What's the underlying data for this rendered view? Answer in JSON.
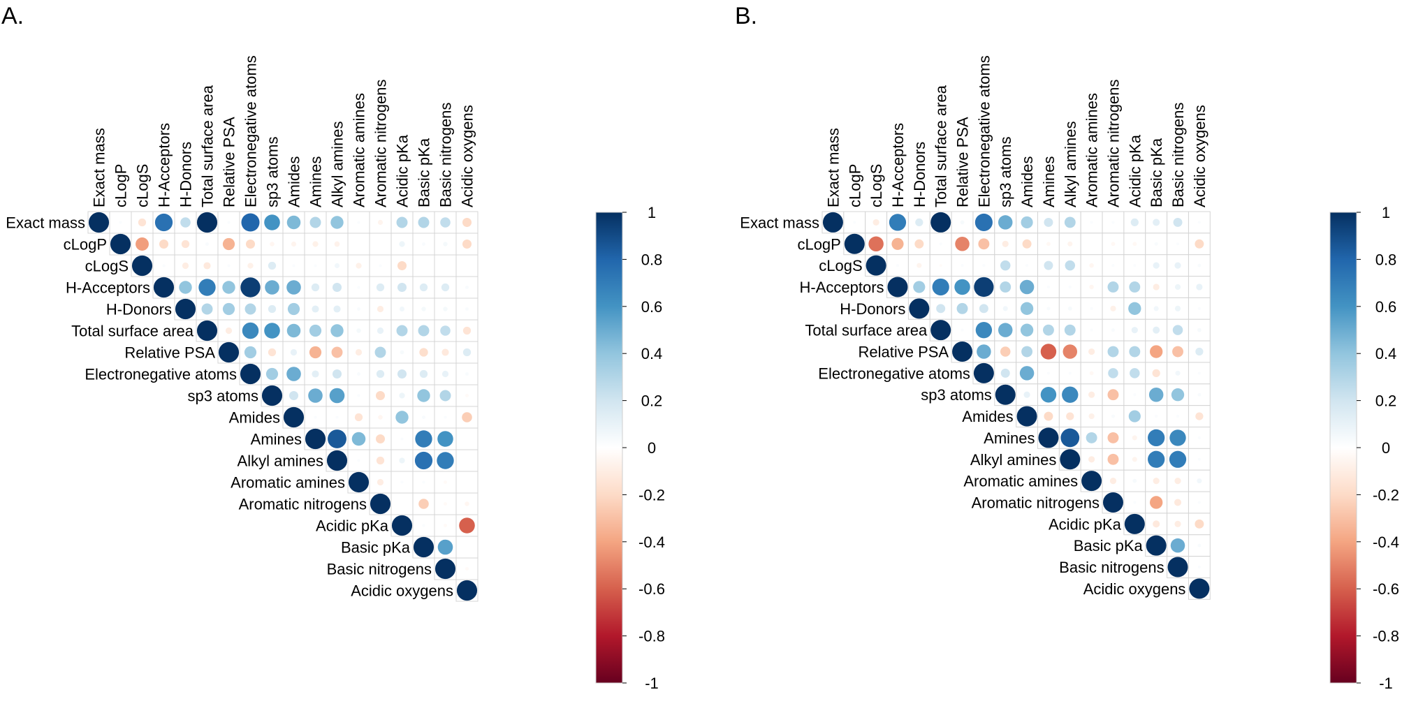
{
  "chart_data": [
    {
      "type": "heatmap",
      "style": "corrplot-circle-upper",
      "panel_label": "A.",
      "variables": [
        "Exact mass",
        "cLogP",
        "cLogS",
        "H-Acceptors",
        "H-Donors",
        "Total surface area",
        "Relative PSA",
        "Electronegative atoms",
        "sp3 atoms",
        "Amides",
        "Amines",
        "Alkyl amines",
        "Aromatic amines",
        "Aromatic nitrogens",
        "Acidic pKa",
        "Basic pKa",
        "Basic nitrogens",
        "Acidic oxygens"
      ],
      "matrix_upper": [
        [
          1,
          0.02,
          -0.15,
          0.75,
          0.25,
          1,
          0.02,
          0.8,
          0.6,
          0.45,
          0.3,
          0.4,
          0.02,
          -0.06,
          0.3,
          0.3,
          0.25,
          -0.2
        ],
        [
          1,
          -0.42,
          -0.2,
          -0.15,
          0.03,
          -0.35,
          -0.2,
          -0.05,
          -0.06,
          -0.08,
          -0.07,
          0,
          0,
          0.08,
          0.03,
          0.05,
          -0.2
        ],
        [
          1,
          0.02,
          -0.1,
          -0.12,
          0.02,
          -0.08,
          0.15,
          0.02,
          0.02,
          0.06,
          -0.08,
          0.02,
          -0.2,
          0,
          0,
          0
        ],
        [
          1,
          0.4,
          0.7,
          0.4,
          0.95,
          0.5,
          0.5,
          0.15,
          0.2,
          0.02,
          0.15,
          0.2,
          0.15,
          0.15,
          0.03
        ],
        [
          1,
          0.3,
          0.35,
          0.3,
          0.15,
          0.35,
          0.12,
          0.12,
          0.03,
          -0.1,
          0.06,
          0.05,
          0.05,
          0.03
        ],
        [
          1,
          -0.1,
          0.65,
          0.6,
          0.45,
          0.35,
          0.4,
          0.05,
          0.1,
          0.3,
          0.3,
          0.25,
          -0.15
        ],
        [
          1,
          0.35,
          -0.15,
          0.1,
          -0.35,
          -0.3,
          -0.1,
          0.3,
          0.04,
          -0.18,
          -0.12,
          0.15
        ],
        [
          1,
          0.35,
          0.5,
          0.12,
          0.2,
          0.03,
          0.15,
          0.2,
          0.15,
          0.1,
          0.03
        ],
        [
          1,
          0.2,
          0.5,
          0.55,
          0.02,
          -0.2,
          0.08,
          0.4,
          0.3,
          -0.03
        ],
        [
          1,
          0.02,
          0.02,
          -0.15,
          -0.05,
          0.4,
          0.03,
          0.02,
          -0.25
        ],
        [
          1,
          0.85,
          0.45,
          -0.2,
          0.02,
          0.7,
          0.6,
          0
        ],
        [
          1,
          0.02,
          -0.15,
          0.08,
          0.75,
          0.7,
          0
        ],
        [
          1,
          -0.1,
          0.02,
          0.02,
          -0.03,
          0
        ],
        [
          1,
          0,
          -0.25,
          -0.03,
          -0.05
        ],
        [
          1,
          0.02,
          -0.03,
          -0.6
        ],
        [
          1,
          0.55,
          0
        ],
        [
          1,
          -0.03
        ],
        [
          1
        ]
      ]
    },
    {
      "type": "heatmap",
      "style": "corrplot-circle-upper",
      "panel_label": "B.",
      "variables": [
        "Exact mass",
        "cLogP",
        "cLogS",
        "H-Acceptors",
        "H-Donors",
        "Total surface area",
        "Relative PSA",
        "Electronegative atoms",
        "sp3 atoms",
        "Amides",
        "Amines",
        "Alkyl amines",
        "Aromatic amines",
        "Aromatic nitrogens",
        "Acidic pKa",
        "Basic pKa",
        "Basic nitrogens",
        "Acidic oxygens"
      ],
      "matrix_upper": [
        [
          1,
          0.02,
          -0.1,
          0.7,
          0.15,
          1,
          0.04,
          0.75,
          0.5,
          0.35,
          0.2,
          0.3,
          0.02,
          0.02,
          0.15,
          0.12,
          0.2,
          0.02
        ],
        [
          1,
          -0.55,
          -0.35,
          -0.2,
          0.02,
          -0.5,
          -0.3,
          -0.1,
          -0.2,
          -0.04,
          -0.06,
          0,
          -0.04,
          -0.04,
          0.03,
          0.02,
          -0.2
        ],
        [
          1,
          0.02,
          -0.06,
          -0.02,
          0.02,
          0.02,
          0.25,
          0.02,
          0.2,
          0.25,
          -0.05,
          0.02,
          0.02,
          0.1,
          0.1,
          0.03
        ],
        [
          1,
          0.35,
          0.7,
          0.6,
          0.95,
          0.3,
          0.5,
          0.02,
          0.02,
          -0.05,
          0.3,
          0.3,
          -0.1,
          0.08,
          0.1
        ],
        [
          1,
          0.2,
          0.3,
          0.2,
          0.06,
          0.4,
          0.03,
          0.04,
          0.02,
          -0.08,
          0.4,
          0.06,
          0.08,
          0.02
        ],
        [
          1,
          0.02,
          0.65,
          0.5,
          0.4,
          0.3,
          0.3,
          0.02,
          0.03,
          0.1,
          0.12,
          0.25,
          0.04
        ],
        [
          1,
          0.5,
          -0.25,
          0.3,
          -0.6,
          -0.5,
          -0.1,
          0.3,
          0.3,
          -0.4,
          -0.3,
          0.15
        ],
        [
          1,
          0.2,
          0.5,
          0.02,
          0.02,
          -0.04,
          0.25,
          0.25,
          -0.15,
          0.06,
          0.02
        ],
        [
          1,
          0.1,
          0.6,
          0.65,
          -0.1,
          -0.3,
          0.02,
          0.5,
          0.4,
          0.03
        ],
        [
          1,
          -0.2,
          -0.15,
          -0.08,
          0.03,
          0.35,
          0.02,
          0.02,
          -0.15
        ],
        [
          1,
          0.85,
          0.3,
          -0.3,
          -0.06,
          0.7,
          0.65,
          0.02
        ],
        [
          1,
          -0.1,
          -0.3,
          -0.06,
          0.7,
          0.7,
          0.02
        ],
        [
          1,
          -0.1,
          0.04,
          -0.1,
          -0.1,
          0.06
        ],
        [
          1,
          0.02,
          -0.4,
          -0.12,
          0.02
        ],
        [
          1,
          -0.12,
          -0.1,
          -0.2
        ],
        [
          1,
          0.5,
          0.03
        ],
        [
          1,
          0.02
        ],
        [
          1
        ]
      ]
    }
  ],
  "colorbar": {
    "ticks": [
      1,
      0.8,
      0.6,
      0.4,
      0.2,
      0,
      -0.2,
      -0.4,
      -0.6,
      -0.8,
      -1
    ],
    "tick_labels": [
      "1",
      "0.8",
      "0.6",
      "0.4",
      "0.2",
      "0",
      "-0.2",
      "-0.4",
      "-0.6",
      "-0.8",
      "-1"
    ],
    "range": [
      -1,
      1
    ],
    "colors": [
      "#67001F",
      "#B2182B",
      "#D6604D",
      "#F4A582",
      "#FDDBC7",
      "#FFFFFF",
      "#D1E5F0",
      "#92C5DE",
      "#4393C3",
      "#2166AC",
      "#053061"
    ]
  }
}
